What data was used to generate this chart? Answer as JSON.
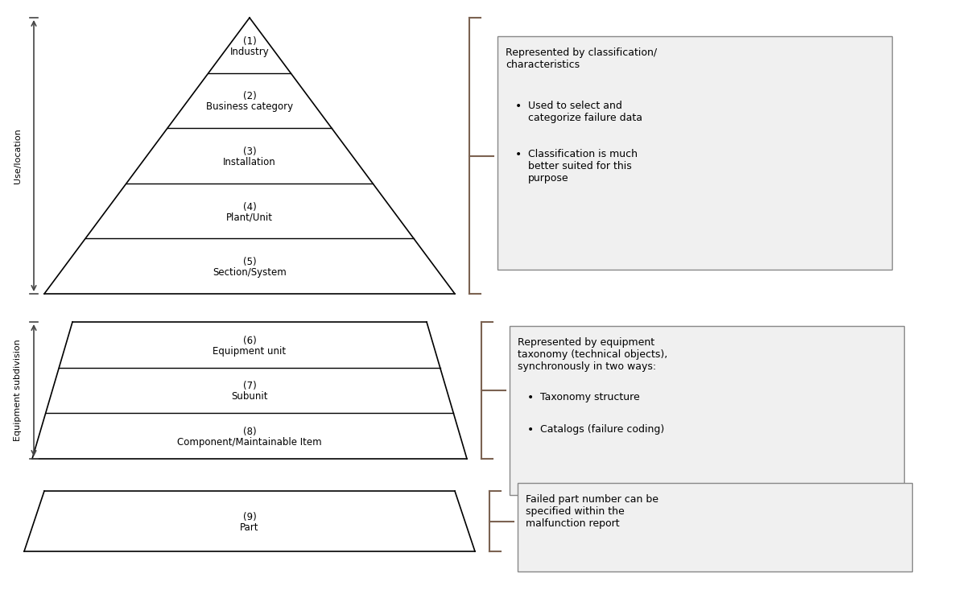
{
  "bg_color": "#ffffff",
  "line_color": "#000000",
  "bracket_color": "#7B6251",
  "pyramid1": {
    "label": "Use/location",
    "layers": [
      {
        "num": "(1)",
        "text": "Industry"
      },
      {
        "num": "(2)",
        "text": "Business category"
      },
      {
        "num": "(3)",
        "text": "Installation"
      },
      {
        "num": "(4)",
        "text": "Plant/Unit"
      },
      {
        "num": "(5)",
        "text": "Section/System"
      }
    ]
  },
  "pyramid2": {
    "label": "Equipment subdivision",
    "layers": [
      {
        "num": "(6)",
        "text": "Equipment unit"
      },
      {
        "num": "(7)",
        "text": "Subunit"
      },
      {
        "num": "(8)",
        "text": "Component/Maintainable Item"
      }
    ]
  },
  "trapezoid3": {
    "layers": [
      {
        "num": "(9)",
        "text": "Part"
      }
    ]
  },
  "box1": {
    "title": "Represented by classification/\ncharacteristics",
    "bullets": [
      "Used to select and\ncategorize failure data",
      "Classification is much\nbetter suited for this\npurpose"
    ]
  },
  "box2": {
    "title": "Represented by equipment\ntaxonomy (technical objects),\nsynchronously in two ways:",
    "bullets": [
      "Taxonomy structure",
      "Catalogs (failure coding)"
    ]
  },
  "box3": {
    "text": "Failed part number can be\nspecified within the\nmalfunction report"
  },
  "font_size_layer": 8.5,
  "font_size_label": 8.0,
  "font_size_box": 9.0
}
